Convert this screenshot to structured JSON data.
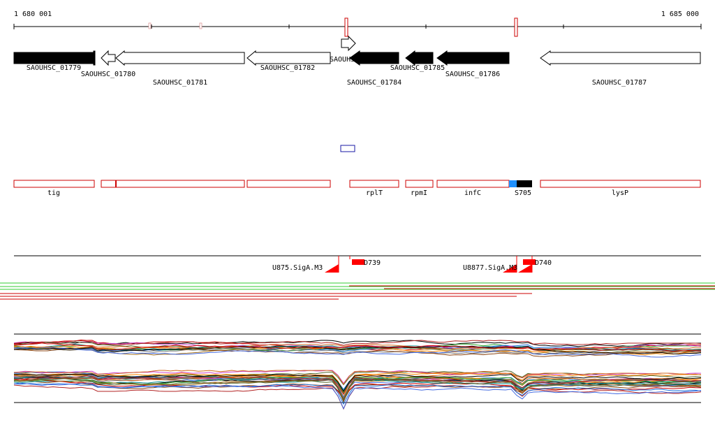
{
  "ruler": {
    "start_label": "1 680 001",
    "end_label": "1 685 000"
  },
  "genes": [
    {
      "label": "SAOUHSC_01779",
      "strand": "+",
      "fill": "#000000"
    },
    {
      "label": "SAOUHSC_01780",
      "strand": "-",
      "fill": "#ffffff"
    },
    {
      "label": "SAOUHSC_01781",
      "strand": "-",
      "fill": "#ffffff"
    },
    {
      "label": "SAOUHSC_01782",
      "strand": "-",
      "fill": "#ffffff"
    },
    {
      "label": "SAOUHSC_",
      "strand": "+",
      "fill": "#ffffff"
    },
    {
      "label": "SAOUHSC_01784",
      "strand": "-",
      "fill": "#000000"
    },
    {
      "label": "SAOUHSC_01785",
      "strand": "-",
      "fill": "#000000"
    },
    {
      "label": "SAOUHSC_01786",
      "strand": "-",
      "fill": "#000000"
    },
    {
      "label": "SAOUHSC_01787",
      "strand": "-",
      "fill": "#ffffff"
    }
  ],
  "transcripts": [
    {
      "label": "tig"
    },
    {
      "label": ""
    },
    {
      "label": ""
    },
    {
      "label": "rplT"
    },
    {
      "label": "rpmI"
    },
    {
      "label": "infC"
    },
    {
      "label": "S705"
    },
    {
      "label": "lysP"
    }
  ],
  "features": [
    {
      "label": "U875.SigA.M3"
    },
    {
      "label": "D739"
    },
    {
      "label": "U8877.SigA.M3"
    },
    {
      "label": "D740"
    }
  ],
  "colors": {
    "gene_outline": "#000000",
    "transcript_outline": "#cc0000",
    "feature": "#ff0000",
    "marker": "#1a1aa6",
    "accent_blue": "#1e90ff",
    "track_green": "#33cc33",
    "track_red": "#cc0000"
  }
}
